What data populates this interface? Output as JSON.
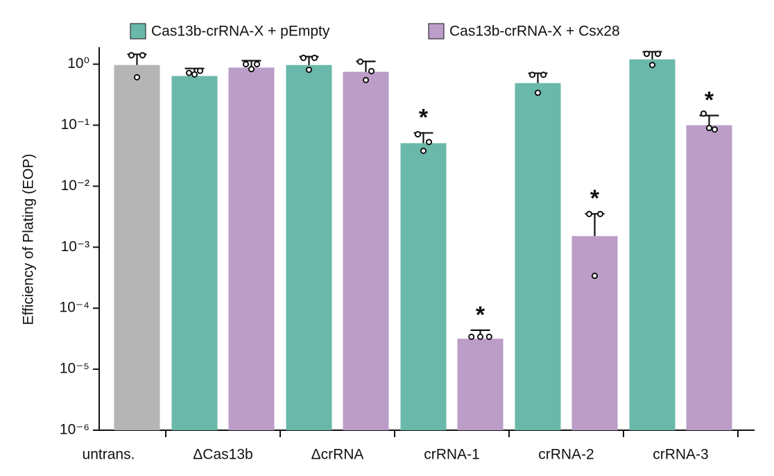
{
  "chart_data": {
    "type": "bar",
    "y_label": "Efficiency of Plating (EOP)",
    "log_scale": true,
    "legend": "top",
    "categories": [
      "untrans.",
      "ΔCas13b",
      "ΔcrRNA",
      "crRNA-1",
      "crRNA-2",
      "crRNA-3"
    ],
    "series": [
      {
        "name": "Cas13b-crRNA-X + pEmpty",
        "color": "#6ab8a9",
        "values": [
          null,
          0.64,
          0.97,
          0.0507,
          0.49,
          1.2
        ],
        "errors": [
          null,
          0.21,
          0.36,
          0.024,
          0.22,
          0.4
        ],
        "points": [
          null,
          [
            0.72,
            0.78,
            0.68
          ],
          [
            1.27,
            1.27,
            0.81
          ],
          [
            0.071,
            0.053,
            0.038
          ],
          [
            0.67,
            0.67,
            0.34
          ],
          [
            1.48,
            1.48,
            0.97
          ]
        ],
        "annotations": [
          null,
          null,
          null,
          "*",
          null,
          null
        ]
      },
      {
        "name": "Cas13b-crRNA-X + Csx28",
        "color": "#bb9dc8",
        "bar_colors": [
          "#b5b5b5",
          null,
          null,
          null,
          null,
          null
        ],
        "values": [
          0.97,
          0.88,
          0.75,
          3.16e-05,
          0.00152,
          0.1
        ],
        "errors": [
          0.48,
          0.26,
          0.36,
          1.2e-05,
          0.002,
          0.044
        ],
        "points": [
          [
            1.4,
            1.4,
            0.61
          ],
          [
            1.0,
            1.0,
            0.83
          ],
          [
            1.1,
            0.77,
            0.55
          ],
          [
            3.4e-05,
            3.4e-05,
            3.4e-05
          ],
          [
            0.0035,
            0.0035,
            0.00034
          ],
          [
            0.155,
            0.085,
            0.09
          ]
        ],
        "annotations": [
          null,
          null,
          null,
          "*",
          "*",
          "*"
        ]
      }
    ],
    "ylim": [
      1e-06,
      1.9
    ],
    "yticks": [
      {
        "value": 1e-06,
        "label": "10⁻⁶"
      },
      {
        "value": 1e-05,
        "label": "10⁻⁵"
      },
      {
        "value": 0.0001,
        "label": "10⁻⁴"
      },
      {
        "value": 0.001,
        "label": "10⁻³"
      },
      {
        "value": 0.01,
        "label": "10⁻²"
      },
      {
        "value": 0.1,
        "label": "10⁻¹"
      },
      {
        "value": 1,
        "label": "10⁰"
      }
    ]
  }
}
